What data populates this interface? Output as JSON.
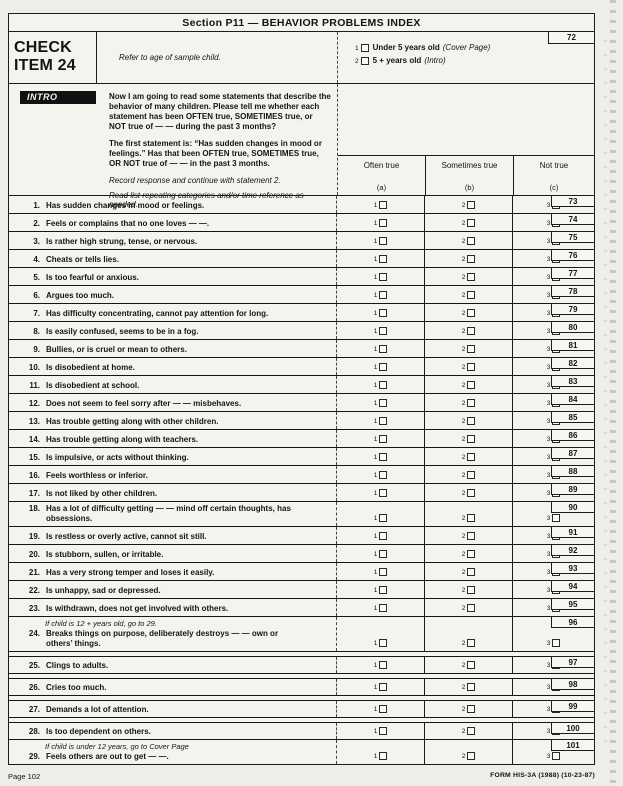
{
  "title": "Section P11 — BEHAVIOR PROBLEMS INDEX",
  "check_item": {
    "label": "CHECK ITEM 24",
    "instruction": "Refer to age of sample child.",
    "card_number": "72",
    "options": [
      {
        "code": "1",
        "label": "Under 5 years old",
        "goto": "(Cover Page)"
      },
      {
        "code": "2",
        "label": "5 +  years old",
        "goto": "(Intro)"
      }
    ]
  },
  "intro": {
    "label": "INTRO",
    "paragraphs": [
      "Now I am going to read some statements that describe the behavior of many children. Please tell me whether each statement has been OFTEN true, SOMETIMES true, or NOT true of — — during the past 3 months?",
      "The first statement is: “Has sudden changes in mood or feelings.” Has that been OFTEN true, SOMETIMES true, OR NOT true of — — in the past 3 months."
    ],
    "interviewer_notes": [
      "Record response and continue with statement 2.",
      "Read list repeating categories and/or time reference as needed."
    ]
  },
  "columns": [
    {
      "label": "Often true",
      "sub": "(a)",
      "code": "1"
    },
    {
      "label": "Sometimes true",
      "sub": "(b)",
      "code": "2"
    },
    {
      "label": "Not true",
      "sub": "(c)",
      "code": "3"
    }
  ],
  "items": [
    {
      "number": "1.",
      "text": "Has sudden changes in mood or feelings.",
      "card": "73"
    },
    {
      "number": "2.",
      "text": "Feels or complains that no one loves — —.",
      "card": "74"
    },
    {
      "number": "3.",
      "text": "Is rather high strung, tense, or nervous.",
      "card": "75"
    },
    {
      "number": "4.",
      "text": "Cheats or tells lies.",
      "card": "76"
    },
    {
      "number": "5.",
      "text": "Is too fearful or anxious.",
      "card": "77"
    },
    {
      "number": "6.",
      "text": "Argues too much.",
      "card": "78"
    },
    {
      "number": "7.",
      "text": "Has difficulty concentrating, cannot pay attention for long.",
      "card": "79"
    },
    {
      "number": "8.",
      "text": "Is easily confused, seems to be in a fog.",
      "card": "80"
    },
    {
      "number": "9.",
      "text": "Bullies, or is cruel or mean to others.",
      "card": "81"
    },
    {
      "number": "10.",
      "text": "Is disobedient at home.",
      "card": "82"
    },
    {
      "number": "11.",
      "text": "Is disobedient at school.",
      "card": "83"
    },
    {
      "number": "12.",
      "text": "Does not seem to feel sorry after — — misbehaves.",
      "card": "84"
    },
    {
      "number": "13.",
      "text": "Has trouble getting along with other children.",
      "card": "85"
    },
    {
      "number": "14.",
      "text": "Has trouble getting along with teachers.",
      "card": "86"
    },
    {
      "number": "15.",
      "text": "Is impulsive, or acts without thinking.",
      "card": "87"
    },
    {
      "number": "16.",
      "text": "Feels worthless or inferior.",
      "card": "88"
    },
    {
      "number": "17.",
      "text": "Is not liked by other children.",
      "card": "89"
    },
    {
      "number": "18.",
      "text": "Has a lot of difficulty getting — — mind off certain thoughts, has obsessions.",
      "card": "90"
    },
    {
      "number": "19.",
      "text": "Is restless or overly active, cannot sit still.",
      "card": "91"
    },
    {
      "number": "20.",
      "text": "Is stubborn, sullen, or irritable.",
      "card": "92"
    },
    {
      "number": "21.",
      "text": "Has a very strong temper and loses it easily.",
      "card": "93"
    },
    {
      "number": "22.",
      "text": "Is unhappy, sad or depressed.",
      "card": "94"
    },
    {
      "number": "23.",
      "text": "Is withdrawn, does not get involved with others.",
      "card": "95"
    },
    {
      "number": "24.",
      "note": "If child is 12 +  years old, go to 29.",
      "text": "Breaks things on purpose, deliberately destroys — — own or others’ things.",
      "card": "96"
    },
    {
      "number": "25.",
      "text": "Clings to adults.",
      "card": "97"
    },
    {
      "number": "26.",
      "text": "Cries too much.",
      "card": "98"
    },
    {
      "number": "27.",
      "text": "Demands a lot of attention.",
      "card": "99"
    },
    {
      "number": "28.",
      "text": "Is too dependent on others.",
      "card": "100"
    },
    {
      "number": "29.",
      "note": "If child is under 12 years, go to Cover Page",
      "text": "Feels others are out to get — —.",
      "card": "101"
    }
  ],
  "footer": {
    "page": "Page 102",
    "form": "FORM HIS-3A (1988) (10-23-87)"
  }
}
